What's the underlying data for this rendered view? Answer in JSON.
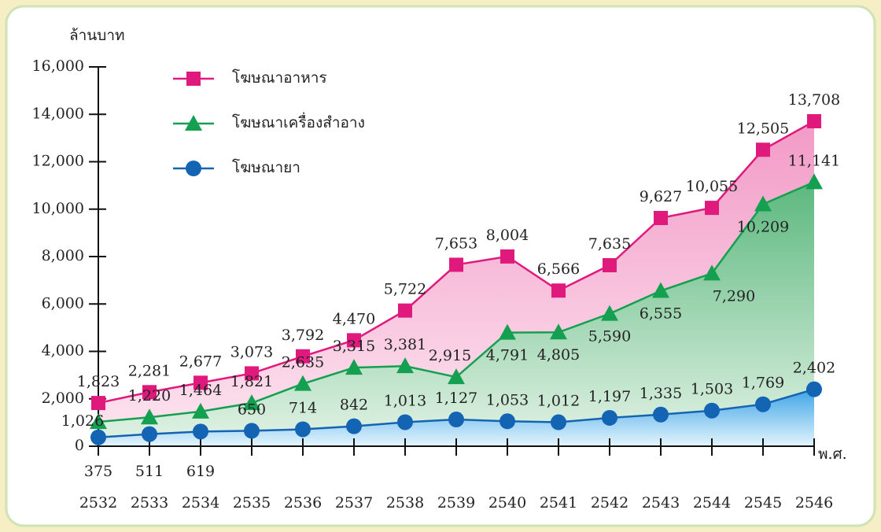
{
  "chart_data": {
    "type": "line",
    "y_label": "ล้านบาท",
    "x_label": "พ.ศ.",
    "categories": [
      "2532",
      "2533",
      "2534",
      "2535",
      "2536",
      "2537",
      "2538",
      "2539",
      "2540",
      "2541",
      "2542",
      "2543",
      "2544",
      "2545",
      "2546"
    ],
    "series": [
      {
        "name": "โฆษณาอาหาร",
        "color": "#e0197d",
        "marker": "square",
        "values": [
          1823,
          2281,
          2677,
          3073,
          3792,
          4470,
          5722,
          7653,
          8004,
          6566,
          7635,
          9627,
          10055,
          12505,
          13708
        ],
        "value_labels": [
          "1,823",
          "2,281",
          "2,677",
          "3,073",
          "3,792",
          "4,470",
          "5,722",
          "7,653",
          "8,004",
          "6,566",
          "7,635",
          "9,627",
          "10,055",
          "12,505",
          "13,708"
        ]
      },
      {
        "name": "โฆษณาเครื่องสำอาง",
        "color": "#14a050",
        "marker": "triangle",
        "values": [
          1026,
          1220,
          1464,
          1821,
          2635,
          3315,
          3381,
          2915,
          4791,
          4805,
          5590,
          6555,
          7290,
          10209,
          11141
        ],
        "value_labels": [
          "1,026",
          "1,220",
          "1,464",
          "1,821",
          "2,635",
          "3,315",
          "3,381",
          "2,915",
          "4,791",
          "4,805",
          "5,590",
          "6,555",
          "7,290",
          "10,209",
          "11,141"
        ]
      },
      {
        "name": "โฆษณายา",
        "color": "#1464b4",
        "marker": "circle",
        "values": [
          375,
          511,
          619,
          650,
          714,
          842,
          1013,
          1127,
          1053,
          1012,
          1197,
          1335,
          1503,
          1769,
          2402
        ],
        "value_labels": [
          "375",
          "511",
          "619",
          "650",
          "714",
          "842",
          "1,013",
          "1,127",
          "1,053",
          "1,012",
          "1,197",
          "1,335",
          "1,503",
          "1,769",
          "2,402"
        ]
      }
    ],
    "ylim": [
      0,
      16000
    ],
    "yticks": [
      0,
      {
        "value": 2000,
        "label": "2,000"
      },
      {
        "value": 4000,
        "label": "4,000"
      },
      {
        "value": 6000,
        "label": "6,000"
      },
      {
        "value": 8000,
        "label": "8,000"
      },
      {
        "value": 10000,
        "label": "10,000"
      },
      {
        "value": 12000,
        "label": "12,000"
      },
      {
        "value": 14000,
        "label": "14,000"
      },
      {
        "value": 16000,
        "label": "16,000"
      }
    ],
    "legend": "upper left",
    "area_fill": true
  }
}
